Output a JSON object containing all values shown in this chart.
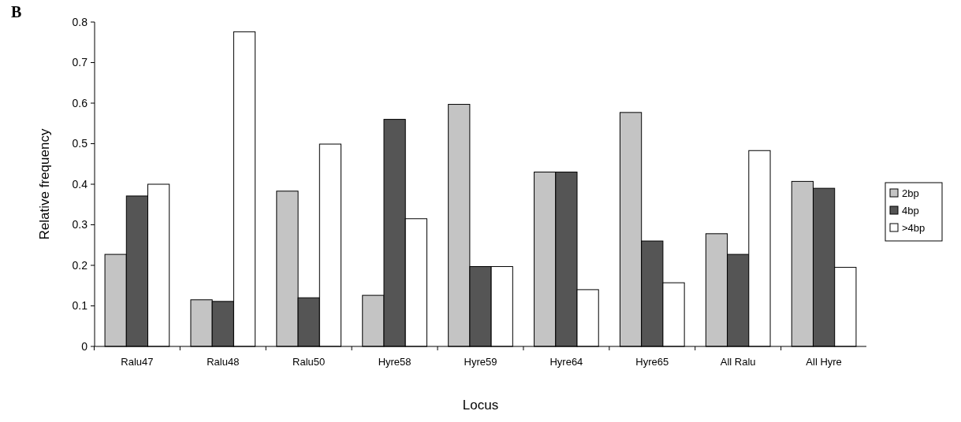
{
  "chart_data": {
    "type": "bar",
    "xlabel": "Locus",
    "ylabel": "Relative frequency",
    "annotations": [
      "B"
    ],
    "categories": [
      "Ralu47",
      "Ralu48",
      "Ralu50",
      "Hyre58",
      "Hyre59",
      "Hyre64",
      "Hyre65",
      "All Ralu",
      "All Hyre"
    ],
    "series": [
      {
        "name": "2bp",
        "color": "#c4c4c4",
        "values": [
          0.227,
          0.115,
          0.383,
          0.126,
          0.597,
          0.43,
          0.577,
          0.278,
          0.407
        ]
      },
      {
        "name": "4bp",
        "color": "#555555",
        "values": [
          0.371,
          0.111,
          0.12,
          0.56,
          0.197,
          0.43,
          0.26,
          0.227,
          0.39
        ]
      },
      {
        "name": ">4bp",
        "color": "#ffffff",
        "values": [
          0.4,
          0.776,
          0.499,
          0.315,
          0.197,
          0.14,
          0.157,
          0.483,
          0.195
        ]
      }
    ],
    "ylim": [
      0,
      0.8
    ],
    "yticks": [
      0,
      0.1,
      0.2,
      0.3,
      0.4,
      0.5,
      0.6,
      0.7,
      0.8
    ],
    "legend": "right",
    "grid": false
  }
}
